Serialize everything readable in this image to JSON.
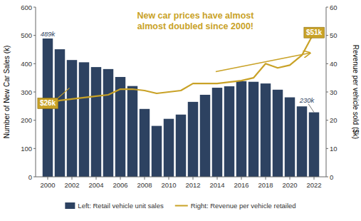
{
  "chart_data": {
    "type": "bar",
    "title": "New car prices have almost\nalmost doubled since 2000!",
    "ylabel": "Number of New Car Sales (k)",
    "y2label": "Revenue per vehicle sold ($k)",
    "x": [
      2000,
      2001,
      2002,
      2003,
      2004,
      2005,
      2006,
      2007,
      2008,
      2009,
      2010,
      2011,
      2012,
      2013,
      2014,
      2015,
      2016,
      2017,
      2018,
      2019,
      2020,
      2021,
      2022
    ],
    "xlim": [
      1999,
      2023
    ],
    "xticks": [
      2000,
      2002,
      2004,
      2006,
      2008,
      2010,
      2012,
      2014,
      2016,
      2018,
      2020,
      2022
    ],
    "ylim": [
      0,
      600
    ],
    "yticks": [
      0,
      100,
      200,
      300,
      400,
      500,
      600
    ],
    "y2lim": [
      0,
      60
    ],
    "y2ticks": [
      0,
      10,
      20,
      30,
      40,
      50,
      60
    ],
    "series": [
      {
        "name": "Left: Retail vehicle unit sales",
        "type": "bar",
        "color": "#2d4261",
        "values": [
          489,
          451,
          413,
          405,
          388,
          381,
          353,
          321,
          240,
          180,
          205,
          220,
          265,
          290,
          315,
          320,
          338,
          336,
          330,
          308,
          281,
          249,
          228
        ]
      },
      {
        "name": "Right: Revenue per vehicle retailed",
        "type": "line",
        "color": "#c9a227",
        "axis": "y2",
        "values": [
          26,
          27.0,
          27.5,
          28.0,
          28.5,
          29.0,
          31.0,
          31.0,
          30.5,
          29.5,
          30.0,
          30.5,
          33.0,
          33.0,
          33.0,
          33.5,
          34.0,
          35.0,
          40.0,
          38.5,
          39.5,
          43.0,
          51.0
        ]
      }
    ],
    "annotations": [
      "$26k",
      "$51k",
      "489k",
      "230k"
    ],
    "legend": "bottom",
    "grid": false
  }
}
